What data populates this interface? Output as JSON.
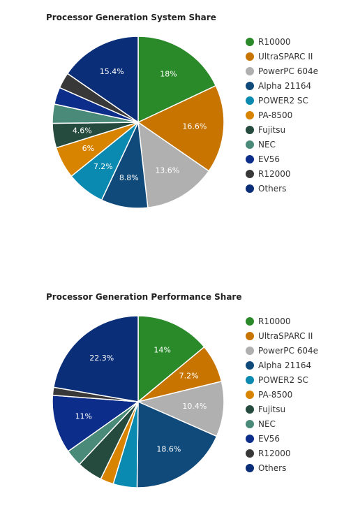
{
  "colors": {
    "R10000": "#2a8a2a",
    "UltraSPARC II": "#c87400",
    "PowerPC 604e": "#b0b0b0",
    "Alpha 21164": "#104a7a",
    "POWER2 SC": "#0a8ab0",
    "PA-8500": "#d88400",
    "Fujitsu": "#254a3e",
    "NEC": "#4a8a78",
    "EV56": "#0c2e8a",
    "R12000": "#383838",
    "Others": "#0a2e78"
  },
  "chart_data": [
    {
      "type": "pie",
      "title": "Processor Generation System Share",
      "legend_position": "right",
      "categories": [
        "R10000",
        "UltraSPARC II",
        "PowerPC 604e",
        "Alpha 21164",
        "POWER2 SC",
        "PA-8500",
        "Fujitsu",
        "NEC",
        "EV56",
        "R12000",
        "Others"
      ],
      "values": [
        18,
        16.6,
        13.6,
        8.8,
        7.2,
        6,
        4.6,
        3.6,
        3.2,
        3.0,
        15.4
      ],
      "labels": [
        "18%",
        "16.6%",
        "13.6%",
        "8.8%",
        "7.2%",
        "6%",
        "4.6%",
        "",
        "",
        "",
        "15.4%"
      ]
    },
    {
      "type": "pie",
      "title": "Processor Generation Performance Share",
      "legend_position": "right",
      "categories": [
        "R10000",
        "UltraSPARC II",
        "PowerPC 604e",
        "Alpha 21164",
        "POWER2 SC",
        "PA-8500",
        "Fujitsu",
        "NEC",
        "EV56",
        "R12000",
        "Others"
      ],
      "values": [
        14,
        7.2,
        10.4,
        18.6,
        4.5,
        2.5,
        4.8,
        3.2,
        11,
        1.5,
        22.3
      ],
      "labels": [
        "14%",
        "7.2%",
        "10.4%",
        "18.6%",
        "",
        "",
        "",
        "",
        "11%",
        "",
        "22.3%"
      ]
    }
  ]
}
